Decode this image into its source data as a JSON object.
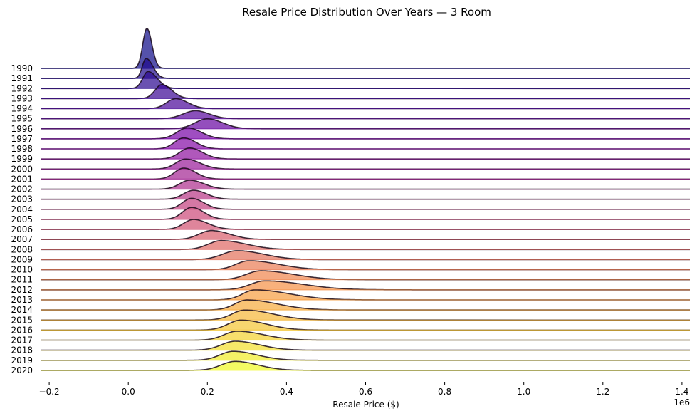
{
  "chart_data": {
    "type": "ridgeline",
    "title": "Resale Price Distribution Over Years — 3 Room",
    "xlabel": "Resale Price ($)",
    "x_offset_label": "1e6",
    "xlim": [
      -0.22,
      1.42
    ],
    "x_scale_factor": 1000000,
    "xticks": [
      -0.2,
      0.0,
      0.2,
      0.4,
      0.6,
      0.8,
      1.0,
      1.2,
      1.4
    ],
    "xtick_labels": [
      "−0.2",
      "0.0",
      "0.2",
      "0.4",
      "0.6",
      "0.8",
      "1.0",
      "1.2",
      "1.4"
    ],
    "colormap": "plasma",
    "categories": [
      "1990",
      "1991",
      "1992",
      "1993",
      "1994",
      "1995",
      "1996",
      "1997",
      "1998",
      "1999",
      "2000",
      "2001",
      "2002",
      "2003",
      "2004",
      "2005",
      "2006",
      "2007",
      "2008",
      "2009",
      "2010",
      "2011",
      "2012",
      "2013",
      "2014",
      "2015",
      "2016",
      "2017",
      "2018",
      "2019",
      "2020"
    ],
    "series": [
      {
        "label": "1990",
        "peak": 0.047,
        "peak_height": 4.0,
        "min": 0.02,
        "max": 0.08
      },
      {
        "label": "1991",
        "peak": 0.045,
        "peak_height": 2.0,
        "min": 0.02,
        "max": 0.09
      },
      {
        "label": "1992",
        "peak": 0.05,
        "peak_height": 1.7,
        "min": 0.015,
        "max": 0.11
      },
      {
        "label": "1993",
        "peak": 0.085,
        "peak_height": 1.4,
        "min": 0.04,
        "max": 0.15
      },
      {
        "label": "1994",
        "peak": 0.12,
        "peak_height": 1.0,
        "min": 0.06,
        "max": 0.2
      },
      {
        "label": "1995",
        "peak": 0.17,
        "peak_height": 0.8,
        "min": 0.09,
        "max": 0.26
      },
      {
        "label": "1996",
        "peak": 0.2,
        "peak_height": 1.0,
        "min": 0.12,
        "max": 0.3
      },
      {
        "label": "1997",
        "peak": 0.15,
        "peak_height": 1.1,
        "min": 0.08,
        "max": 0.24
      },
      {
        "label": "1998",
        "peak": 0.14,
        "peak_height": 1.1,
        "min": 0.08,
        "max": 0.22
      },
      {
        "label": "1999",
        "peak": 0.155,
        "peak_height": 1.1,
        "min": 0.09,
        "max": 0.24
      },
      {
        "label": "2000",
        "peak": 0.145,
        "peak_height": 1.0,
        "min": 0.08,
        "max": 0.24
      },
      {
        "label": "2001",
        "peak": 0.14,
        "peak_height": 1.1,
        "min": 0.08,
        "max": 0.22
      },
      {
        "label": "2002",
        "peak": 0.155,
        "peak_height": 0.9,
        "min": 0.09,
        "max": 0.25
      },
      {
        "label": "2003",
        "peak": 0.165,
        "peak_height": 0.9,
        "min": 0.1,
        "max": 0.25
      },
      {
        "label": "2004",
        "peak": 0.16,
        "peak_height": 1.1,
        "min": 0.1,
        "max": 0.24
      },
      {
        "label": "2005",
        "peak": 0.16,
        "peak_height": 1.2,
        "min": 0.1,
        "max": 0.24
      },
      {
        "label": "2006",
        "peak": 0.165,
        "peak_height": 1.0,
        "min": 0.1,
        "max": 0.26
      },
      {
        "label": "2007",
        "peak": 0.21,
        "peak_height": 0.9,
        "min": 0.13,
        "max": 0.33
      },
      {
        "label": "2008",
        "peak": 0.235,
        "peak_height": 0.9,
        "min": 0.15,
        "max": 0.4
      },
      {
        "label": "2009",
        "peak": 0.275,
        "peak_height": 0.9,
        "min": 0.18,
        "max": 0.45
      },
      {
        "label": "2010",
        "peak": 0.305,
        "peak_height": 0.9,
        "min": 0.22,
        "max": 0.5
      },
      {
        "label": "2011",
        "peak": 0.335,
        "peak_height": 0.9,
        "min": 0.24,
        "max": 0.55
      },
      {
        "label": "2012",
        "peak": 0.345,
        "peak_height": 0.9,
        "min": 0.25,
        "max": 0.6
      },
      {
        "label": "2013",
        "peak": 0.32,
        "peak_height": 1.0,
        "min": 0.24,
        "max": 0.55
      },
      {
        "label": "2014",
        "peak": 0.3,
        "peak_height": 1.0,
        "min": 0.22,
        "max": 0.5
      },
      {
        "label": "2015",
        "peak": 0.295,
        "peak_height": 1.0,
        "min": 0.21,
        "max": 0.48
      },
      {
        "label": "2016",
        "peak": 0.285,
        "peak_height": 1.0,
        "min": 0.2,
        "max": 0.45
      },
      {
        "label": "2017",
        "peak": 0.275,
        "peak_height": 0.9,
        "min": 0.19,
        "max": 0.45
      },
      {
        "label": "2018",
        "peak": 0.27,
        "peak_height": 0.9,
        "min": 0.18,
        "max": 0.43
      },
      {
        "label": "2019",
        "peak": 0.265,
        "peak_height": 0.9,
        "min": 0.18,
        "max": 0.42
      },
      {
        "label": "2020",
        "peak": 0.27,
        "peak_height": 0.9,
        "min": 0.18,
        "max": 0.42
      }
    ],
    "grid": false
  }
}
